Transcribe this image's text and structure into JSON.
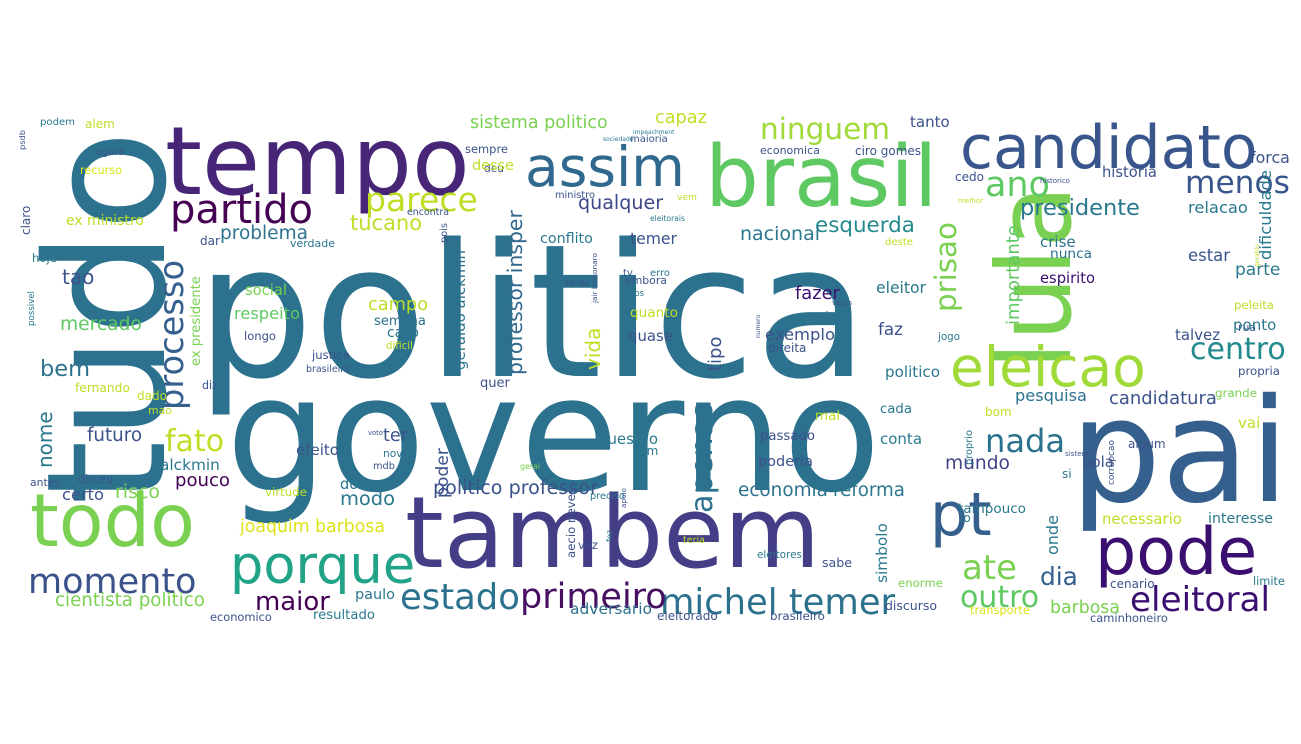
{
  "words": [
    {
      "t": "politica",
      "c": "#2c728e"
    },
    {
      "t": "governo",
      "c": "#2c728e"
    },
    {
      "t": "tambem",
      "c": "#433e85"
    },
    {
      "t": "pai",
      "c": "#355f8d"
    },
    {
      "t": "lula",
      "c": "#7ad151"
    },
    {
      "t": "tudo",
      "c": "#2c728e"
    },
    {
      "t": "tempo",
      "c": "#482677"
    },
    {
      "t": "brasil",
      "c": "#5ec962"
    },
    {
      "t": "todo",
      "c": "#7ad151"
    },
    {
      "t": "pode",
      "c": "#3b0f70"
    },
    {
      "t": "candidato",
      "c": "#39568c"
    },
    {
      "t": "assim",
      "c": "#31688e"
    },
    {
      "t": "eleicao",
      "c": "#a0da39"
    },
    {
      "t": "pt",
      "c": "#355f8d"
    },
    {
      "t": "porque",
      "c": "#20a387"
    },
    {
      "t": "momento",
      "c": "#3b528b"
    },
    {
      "t": "partido",
      "c": "#440154"
    },
    {
      "t": "parece",
      "c": "#bddf26"
    },
    {
      "t": "ninguem",
      "c": "#a0da39"
    },
    {
      "t": "ano",
      "c": "#5ec962"
    },
    {
      "t": "menos",
      "c": "#39568c"
    },
    {
      "t": "estado",
      "c": "#2c728e"
    },
    {
      "t": "michel temer",
      "c": "#2c728e"
    },
    {
      "t": "primeiro",
      "c": "#471063"
    },
    {
      "t": "ate",
      "c": "#7ad151"
    },
    {
      "t": "eleitoral",
      "c": "#3b0f70"
    },
    {
      "t": "apenas",
      "c": "#2c728e"
    },
    {
      "t": "nada",
      "c": "#2c728e"
    },
    {
      "t": "centro",
      "c": "#238a8d"
    },
    {
      "t": "processo",
      "c": "#355f8d"
    },
    {
      "t": "prisao",
      "c": "#7ad151"
    },
    {
      "t": "fato",
      "c": "#bddf26"
    },
    {
      "t": "bem",
      "c": "#2c728e"
    },
    {
      "t": "maior",
      "c": "#440154"
    },
    {
      "t": "outro",
      "c": "#5ec962"
    },
    {
      "t": "dia",
      "c": "#355f8d"
    },
    {
      "t": "mundo",
      "c": "#414487"
    },
    {
      "t": "esquerda",
      "c": "#238a8d"
    },
    {
      "t": "presidente",
      "c": "#2a788e"
    },
    {
      "t": "tucano",
      "c": "#bddf26"
    },
    {
      "t": "cientista politico",
      "c": "#7ad151"
    },
    {
      "t": "professor insper",
      "c": "#31688e"
    },
    {
      "t": "geraldo alckmin",
      "c": "#2c728e"
    },
    {
      "t": "sistema politico",
      "c": "#7ad151"
    },
    {
      "t": "problema",
      "c": "#2c728e"
    },
    {
      "t": "joaquim barbosa",
      "c": "#dde318"
    },
    {
      "t": "politico professor",
      "c": "#3b528b"
    },
    {
      "t": "economia",
      "c": "#2c728e"
    },
    {
      "t": "reforma",
      "c": "#2a788e"
    },
    {
      "t": "candidatura",
      "c": "#3b528b"
    },
    {
      "t": "pesquisa",
      "c": "#2c728e"
    },
    {
      "t": "barbosa",
      "c": "#7ad151"
    },
    {
      "t": "adversario",
      "c": "#2c728e"
    },
    {
      "t": "modo",
      "c": "#2a788e"
    },
    {
      "t": "pouco",
      "c": "#440154"
    },
    {
      "t": "risco",
      "c": "#7ad151"
    },
    {
      "t": "futuro",
      "c": "#3b528b"
    },
    {
      "t": "alckmin",
      "c": "#2a788e"
    },
    {
      "t": "mercado",
      "c": "#5ec962"
    },
    {
      "t": "tao",
      "c": "#3b528b"
    },
    {
      "t": "nome",
      "c": "#2a788e"
    },
    {
      "t": "capaz",
      "c": "#bddf26"
    },
    {
      "t": "qualquer",
      "c": "#3e4989"
    },
    {
      "t": "nacional",
      "c": "#2a788e"
    },
    {
      "t": "fazer",
      "c": "#3b0f70"
    },
    {
      "t": "contra",
      "c": "#2c728e"
    },
    {
      "t": "exemplo",
      "c": "#3b528b"
    },
    {
      "t": "quase",
      "c": "#3b528b"
    },
    {
      "t": "conflito",
      "c": "#2a788e"
    },
    {
      "t": "temer",
      "c": "#3b528b"
    },
    {
      "t": "deu",
      "c": "#3b528b"
    },
    {
      "t": "sempre",
      "c": "#3b528b"
    },
    {
      "t": "desse",
      "c": "#bddf26"
    },
    {
      "t": "campo",
      "c": "#bddf26"
    },
    {
      "t": "respeito",
      "c": "#5ec962"
    },
    {
      "t": "social",
      "c": "#7ad151"
    },
    {
      "t": "semana",
      "c": "#2c728e"
    },
    {
      "t": "caso",
      "c": "#2a788e"
    },
    {
      "t": "quanto",
      "c": "#bddf26"
    },
    {
      "t": "vida",
      "c": "#bddf26"
    },
    {
      "t": "tipo",
      "c": "#3b528b"
    },
    {
      "t": "faz",
      "c": "#3b528b"
    },
    {
      "t": "eleitor",
      "c": "#2a788e"
    },
    {
      "t": "politico",
      "c": "#2a788e"
    },
    {
      "t": "relacao",
      "c": "#2a788e"
    },
    {
      "t": "estar",
      "c": "#3b528b"
    },
    {
      "t": "parte",
      "c": "#2a788e"
    },
    {
      "t": "historia",
      "c": "#3b528b"
    },
    {
      "t": "forca",
      "c": "#3b528b"
    },
    {
      "t": "dificuldade",
      "c": "#2a788e"
    },
    {
      "t": "importante",
      "c": "#5ec962"
    },
    {
      "t": "crise",
      "c": "#2c728e"
    },
    {
      "t": "nunca",
      "c": "#2c728e"
    },
    {
      "t": "espirito",
      "c": "#3b0f70"
    },
    {
      "t": "talvez",
      "c": "#3b528b"
    },
    {
      "t": "rua",
      "c": "#3b528b"
    },
    {
      "t": "ponto",
      "c": "#2a788e"
    },
    {
      "t": "conta",
      "c": "#2a788e"
    },
    {
      "t": "cada",
      "c": "#2a788e"
    },
    {
      "t": "mal",
      "c": "#bddf26"
    },
    {
      "t": "ter",
      "c": "#3b528b"
    },
    {
      "t": "efeito",
      "c": "#3b528b"
    },
    {
      "t": "questao",
      "c": "#2a788e"
    },
    {
      "t": "poder",
      "c": "#3b528b"
    },
    {
      "t": "onde",
      "c": "#2a788e"
    },
    {
      "t": "necessario",
      "c": "#bddf26"
    },
    {
      "t": "interesse",
      "c": "#2a788e"
    },
    {
      "t": "simbolo",
      "c": "#2a788e"
    },
    {
      "t": "bola",
      "c": "#3b528b"
    },
    {
      "t": "tampouco",
      "c": "#2a788e"
    },
    {
      "t": "poderia",
      "c": "#3b528b"
    },
    {
      "t": "discurso",
      "c": "#3b528b"
    },
    {
      "t": "paulo",
      "c": "#2a788e"
    },
    {
      "t": "certo",
      "c": "#3b528b"
    },
    {
      "t": "tanto",
      "c": "#3b528b"
    },
    {
      "t": "psdb",
      "c": "#3b528b"
    },
    {
      "t": "claro",
      "c": "#3b528b"
    },
    {
      "t": "hoje",
      "c": "#2a788e"
    },
    {
      "t": "possivel",
      "c": "#2a788e"
    },
    {
      "t": "podem",
      "c": "#2a788e"
    },
    {
      "t": "alem",
      "c": "#bddf26"
    },
    {
      "t": "agora",
      "c": "#3b528b"
    },
    {
      "t": "recurso",
      "c": "#dde318"
    },
    {
      "t": "ex ministro",
      "c": "#bddf26"
    },
    {
      "t": "dar",
      "c": "#3b528b"
    },
    {
      "t": "verdade",
      "c": "#2a788e"
    },
    {
      "t": "ex presidente",
      "c": "#7ad151"
    },
    {
      "t": "longo",
      "c": "#3b528b"
    },
    {
      "t": "dificil",
      "c": "#bddf26"
    },
    {
      "t": "justica",
      "c": "#3b528b"
    },
    {
      "t": "brasileira",
      "c": "#3b528b"
    },
    {
      "t": "fernando",
      "c": "#bddf26"
    },
    {
      "t": "quer",
      "c": "#3b528b"
    },
    {
      "t": "diz",
      "c": "#3b528b"
    },
    {
      "t": "dado",
      "c": "#bddf26"
    },
    {
      "t": "mao",
      "c": "#bddf26"
    },
    {
      "t": "voto",
      "c": "#3b528b"
    },
    {
      "t": "novo",
      "c": "#2a788e"
    },
    {
      "t": "mdb",
      "c": "#3b528b"
    },
    {
      "t": "dirceu",
      "c": "#3b528b"
    },
    {
      "t": "antes",
      "c": "#3b528b"
    },
    {
      "t": "dois",
      "c": "#2a788e"
    },
    {
      "t": "virtude",
      "c": "#bddf26"
    },
    {
      "t": "preciso",
      "c": "#2a788e"
    },
    {
      "t": "sim",
      "c": "#2a788e"
    },
    {
      "t": "geral",
      "c": "#7ad151"
    },
    {
      "t": "economico",
      "c": "#3b528b"
    },
    {
      "t": "resultado",
      "c": "#2a788e"
    },
    {
      "t": "eleitorado",
      "c": "#3b528b"
    },
    {
      "t": "brasileiro",
      "c": "#3b528b"
    },
    {
      "t": "transporte",
      "c": "#dde318"
    },
    {
      "t": "caminhoneiro",
      "c": "#3b528b"
    },
    {
      "t": "cenario",
      "c": "#3b528b"
    },
    {
      "t": "limite",
      "c": "#2a788e"
    },
    {
      "t": "enorme",
      "c": "#7ad151"
    },
    {
      "t": "sabe",
      "c": "#3b528b"
    },
    {
      "t": "eleitores",
      "c": "#2a788e"
    },
    {
      "t": "teria",
      "c": "#bddf26"
    },
    {
      "t": "vez",
      "c": "#3b528b"
    },
    {
      "t": "fez",
      "c": "#2a788e"
    },
    {
      "t": "aecio neves",
      "c": "#3b528b"
    },
    {
      "t": "apoio",
      "c": "#3b528b"
    },
    {
      "t": "passado",
      "c": "#3b528b"
    },
    {
      "t": "proprio",
      "c": "#2a788e"
    },
    {
      "t": "bom",
      "c": "#bddf26"
    },
    {
      "t": "algum",
      "c": "#3b528b"
    },
    {
      "t": "vai",
      "c": "#bddf26"
    },
    {
      "t": "sistema",
      "c": "#3b528b"
    },
    {
      "t": "si",
      "c": "#2a788e"
    },
    {
      "t": "corrupcao",
      "c": "#3b528b"
    },
    {
      "t": "lo",
      "c": "#2a788e"
    },
    {
      "t": "grande",
      "c": "#7ad151"
    },
    {
      "t": "propria",
      "c": "#3b528b"
    },
    {
      "t": "peleita",
      "c": "#bddf26"
    },
    {
      "t": "geraldo",
      "c": "#bddf26"
    },
    {
      "t": "jogo",
      "c": "#2a788e"
    },
    {
      "t": "direita",
      "c": "#3b528b"
    },
    {
      "t": "vezes",
      "c": "#3b528b"
    },
    {
      "t": "numero",
      "c": "#3b528b"
    },
    {
      "t": "tarde",
      "c": "#3b528b"
    },
    {
      "t": "jair bolsonaro",
      "c": "#3b528b"
    },
    {
      "t": "apos",
      "c": "#2a788e"
    },
    {
      "t": "embora",
      "c": "#3b528b"
    },
    {
      "t": "erro",
      "c": "#2a788e"
    },
    {
      "t": "tv",
      "c": "#3b528b"
    },
    {
      "t": "pois",
      "c": "#3b528b"
    },
    {
      "t": "encontra",
      "c": "#3b528b"
    },
    {
      "t": "ministro",
      "c": "#3b528b"
    },
    {
      "t": "eleitorais",
      "c": "#2a788e"
    },
    {
      "t": "vem",
      "c": "#bddf26"
    },
    {
      "t": "deste",
      "c": "#bddf26"
    },
    {
      "t": "impeachment",
      "c": "#2a788e"
    },
    {
      "t": "maioria",
      "c": "#3b528b"
    },
    {
      "t": "sociedade",
      "c": "#2a788e"
    },
    {
      "t": "economica",
      "c": "#3b528b"
    },
    {
      "t": "ciro gomes",
      "c": "#3b528b"
    },
    {
      "t": "cedo",
      "c": "#3b528b"
    },
    {
      "t": "melhor",
      "c": "#bddf26"
    },
    {
      "t": "historico",
      "c": "#3b528b"
    }
  ]
}
